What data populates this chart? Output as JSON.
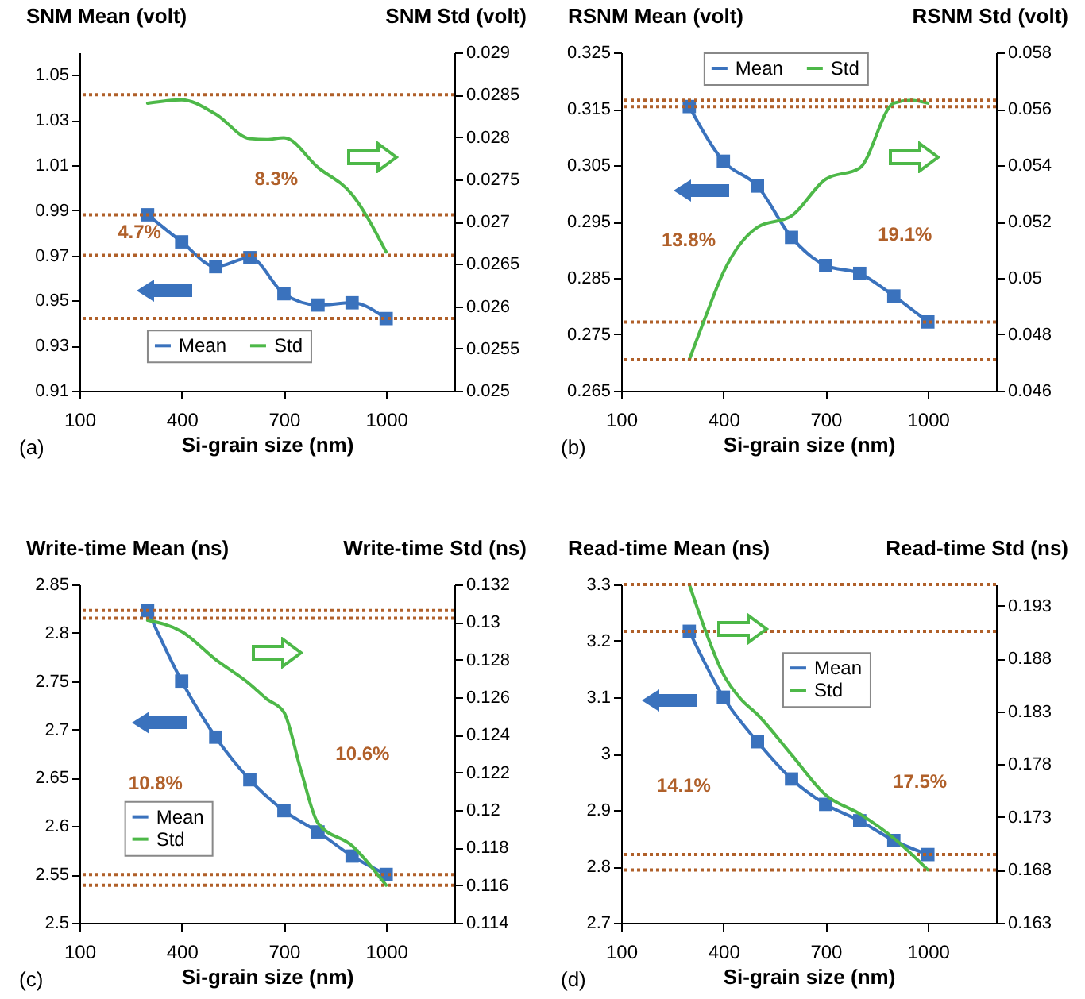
{
  "chart_data": [
    {
      "type": "line",
      "ylabel": "SNM Mean (volt)",
      "y2label": "SNM Std (volt)",
      "xlabel": "Si-grain size (nm)",
      "x": [
        300,
        400,
        500,
        600,
        700,
        800,
        900,
        1000
      ],
      "xlim": [
        100,
        1200
      ],
      "xticks": [
        100,
        400,
        700,
        1000
      ],
      "ylim": [
        0.91,
        1.06
      ],
      "yticks": [
        0.91,
        0.93,
        0.95,
        0.97,
        0.99,
        1.01,
        1.03,
        1.05
      ],
      "y2lim": [
        0.025,
        0.029
      ],
      "y2ticks": [
        0.025,
        0.0255,
        0.026,
        0.0265,
        0.027,
        0.0275,
        0.028,
        0.0285,
        0.029
      ],
      "legend": "bottom",
      "grid": false,
      "series": [
        {
          "name": "Mean",
          "color": "#3a72bd",
          "marker": "square",
          "values": [
            0.988,
            0.976,
            0.965,
            0.969,
            0.953,
            0.948,
            0.949,
            0.942
          ]
        },
        {
          "name": "Std",
          "color": "#4db848",
          "axis": "y2",
          "marker": "none",
          "x": [
            300,
            400,
            500,
            600,
            650,
            700,
            800,
            900,
            1000
          ],
          "values": [
            0.0284,
            0.02844,
            0.02827,
            0.02798,
            0.02797,
            0.02799,
            0.02764,
            0.02732,
            0.02664
          ]
        }
      ],
      "ref_lines": [
        {
          "axis": "y",
          "value": 0.988,
          "color": "#b0602a",
          "line_style": "dotted"
        },
        {
          "axis": "y",
          "value": 0.942,
          "color": "#b0602a",
          "line_style": "dotted"
        },
        {
          "axis": "y2",
          "value": 0.0285,
          "color": "#b0602a",
          "line_style": "dotted"
        },
        {
          "axis": "y2",
          "value": 0.0266,
          "color": "#b0602a",
          "line_style": "dotted"
        }
      ],
      "annotations": [
        "(a)",
        "4.7%",
        "8.3%"
      ]
    },
    {
      "type": "line",
      "ylabel": "RSNM Mean (volt)",
      "y2label": "RSNM Std (volt)",
      "xlabel": "Si-grain size (nm)",
      "x": [
        300,
        400,
        500,
        600,
        700,
        800,
        900,
        1000
      ],
      "xlim": [
        100,
        1200
      ],
      "xticks": [
        100,
        400,
        700,
        1000
      ],
      "ylim": [
        0.265,
        0.325
      ],
      "yticks": [
        0.265,
        0.275,
        0.285,
        0.295,
        0.305,
        0.315,
        0.325
      ],
      "y2lim": [
        0.046,
        0.058
      ],
      "y2ticks": [
        0.046,
        0.048,
        0.05,
        0.052,
        0.054,
        0.056,
        0.058
      ],
      "legend": "top",
      "grid": false,
      "series": [
        {
          "name": "Mean",
          "color": "#3a72bd",
          "marker": "square",
          "values": [
            0.3154,
            0.3057,
            0.3013,
            0.2922,
            0.2872,
            0.2858,
            0.2818,
            0.2772
          ]
        },
        {
          "name": "Std",
          "color": "#4db848",
          "axis": "y2",
          "marker": "none",
          "x": [
            300,
            350,
            400,
            500,
            600,
            700,
            800,
            900,
            950,
            1000
          ],
          "values": [
            0.0471,
            0.0487,
            0.0502,
            0.0518,
            0.0522,
            0.0535,
            0.0539,
            0.0562,
            0.0563,
            0.0562
          ]
        }
      ],
      "ref_lines": [
        {
          "axis": "y",
          "value": 0.3154,
          "color": "#b0602a",
          "line_style": "dotted"
        },
        {
          "axis": "y",
          "value": 0.2772,
          "color": "#b0602a",
          "line_style": "dotted"
        },
        {
          "axis": "y2",
          "value": 0.0563,
          "color": "#b0602a",
          "line_style": "dotted"
        },
        {
          "axis": "y2",
          "value": 0.0471,
          "color": "#b0602a",
          "line_style": "dotted"
        }
      ],
      "annotations": [
        "(b)",
        "13.8%",
        "19.1%"
      ]
    },
    {
      "type": "line",
      "ylabel": "Write-time Mean (ns)",
      "y2label": "Write-time Std (ns)",
      "xlabel": "Si-grain size (nm)",
      "x": [
        300,
        400,
        500,
        600,
        700,
        800,
        900,
        1000
      ],
      "xlim": [
        100,
        1200
      ],
      "xticks": [
        100,
        400,
        700,
        1000
      ],
      "ylim": [
        2.5,
        2.85
      ],
      "yticks": [
        2.5,
        2.55,
        2.6,
        2.65,
        2.7,
        2.75,
        2.8,
        2.85
      ],
      "y2lim": [
        0.114,
        0.132
      ],
      "y2ticks": [
        0.114,
        0.116,
        0.118,
        0.12,
        0.122,
        0.124,
        0.126,
        0.128,
        0.13,
        0.132
      ],
      "legend": "bottom left",
      "grid": false,
      "series": [
        {
          "name": "Mean",
          "color": "#3a72bd",
          "marker": "square",
          "values": [
            2.823,
            2.75,
            2.692,
            2.648,
            2.616,
            2.594,
            2.569,
            2.55
          ]
        },
        {
          "name": "Std",
          "color": "#4db848",
          "axis": "y2",
          "marker": "none",
          "x": [
            300,
            400,
            500,
            600,
            650,
            700,
            750,
            800,
            900,
            1000
          ],
          "values": [
            0.1301,
            0.1295,
            0.128,
            0.1267,
            0.1259,
            0.1252,
            0.1221,
            0.1193,
            0.1181,
            0.116
          ]
        }
      ],
      "ref_lines": [
        {
          "axis": "y",
          "value": 2.823,
          "color": "#b0602a",
          "line_style": "dotted"
        },
        {
          "axis": "y",
          "value": 2.55,
          "color": "#b0602a",
          "line_style": "dotted"
        },
        {
          "axis": "y2",
          "value": 0.1302,
          "color": "#b0602a",
          "line_style": "dotted"
        },
        {
          "axis": "y2",
          "value": 0.116,
          "color": "#b0602a",
          "line_style": "dotted"
        }
      ],
      "annotations": [
        "(c)",
        "10.8%",
        "10.6%"
      ]
    },
    {
      "type": "line",
      "ylabel": "Read-time Mean (ns)",
      "y2label": "Read-time Std (ns)",
      "xlabel": "Si-grain size (nm)",
      "x": [
        300,
        400,
        500,
        600,
        700,
        800,
        900,
        1000
      ],
      "xlim": [
        100,
        1200
      ],
      "xticks": [
        100,
        400,
        700,
        1000
      ],
      "ylim": [
        2.7,
        3.3
      ],
      "yticks": [
        2.7,
        2.8,
        2.9,
        3,
        3.1,
        3.2,
        3.3
      ],
      "y2lim": [
        0.163,
        0.195
      ],
      "y2ticks": [
        0.163,
        0.168,
        0.173,
        0.178,
        0.183,
        0.188,
        0.193
      ],
      "legend": "top right",
      "grid": false,
      "series": [
        {
          "name": "Mean",
          "color": "#3a72bd",
          "marker": "square",
          "values": [
            3.217,
            3.1,
            3.021,
            2.955,
            2.91,
            2.881,
            2.846,
            2.821
          ]
        },
        {
          "name": "Std",
          "color": "#4db848",
          "axis": "y2",
          "marker": "none",
          "x": [
            300,
            350,
            400,
            450,
            500,
            600,
            700,
            800,
            900,
            1000
          ],
          "values": [
            0.195,
            0.1904,
            0.1865,
            0.1842,
            0.1827,
            0.1789,
            0.1751,
            0.1733,
            0.171,
            0.168
          ]
        }
      ],
      "ref_lines": [
        {
          "axis": "y",
          "value": 3.217,
          "color": "#b0602a",
          "line_style": "dotted"
        },
        {
          "axis": "y",
          "value": 2.821,
          "color": "#b0602a",
          "line_style": "dotted"
        },
        {
          "axis": "y2",
          "value": 0.195,
          "color": "#b0602a",
          "line_style": "dotted"
        },
        {
          "axis": "y2",
          "value": 0.168,
          "color": "#b0602a",
          "line_style": "dotted"
        }
      ],
      "annotations": [
        "(d)",
        "14.1%",
        "17.5%"
      ]
    }
  ]
}
